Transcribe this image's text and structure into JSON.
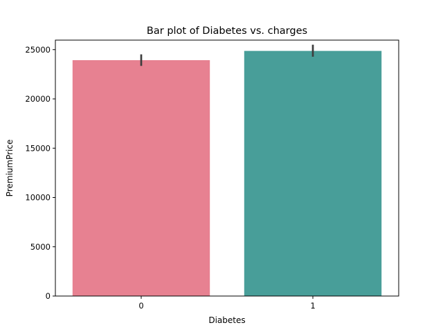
{
  "chart_data": {
    "type": "bar",
    "title": "Bar plot of Diabetes vs. charges",
    "xlabel": "Diabetes",
    "ylabel": "PremiumPrice",
    "categories": [
      "0",
      "1"
    ],
    "values": [
      23930,
      24870
    ],
    "error_bars": [
      {
        "low": 23350,
        "high": 24520
      },
      {
        "low": 24280,
        "high": 25500
      }
    ],
    "colors": [
      "#E78191",
      "#489E99"
    ],
    "error_bar_color": "#3d3d3d",
    "ylim": [
      0,
      25965
    ],
    "yticks": [
      0,
      5000,
      10000,
      15000,
      20000,
      25000
    ],
    "ytick_labels": [
      "0",
      "5000",
      "10000",
      "15000",
      "20000",
      "25000"
    ],
    "grid": false,
    "legend": "none"
  }
}
